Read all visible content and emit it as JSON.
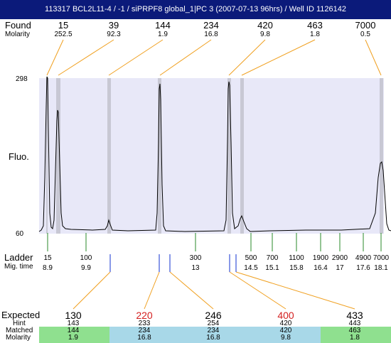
{
  "title": "113317  BCL2L11-4 / -1 / siPRPF8 global_1|PC 3 (2007-07-13 96hrs) / Well ID 1126142",
  "labels": {
    "found": "Found",
    "molarity": "Molarity",
    "fluo": "Fluo.",
    "ymax": "298",
    "ymin": "60",
    "ladder": "Ladder",
    "mig_time": "Mig. time",
    "expected": "Expected",
    "hint": "Hint",
    "matched": "Matched",
    "molarity_bottom": "Molarity"
  },
  "found": [
    {
      "size": "15",
      "molarity": "252.5"
    },
    {
      "size": "39",
      "molarity": "92.3"
    },
    {
      "size": "144",
      "molarity": "1.9"
    },
    {
      "size": "234",
      "molarity": "16.8"
    },
    {
      "size": "420",
      "molarity": "9.8"
    },
    {
      "size": "463",
      "molarity": "1.8"
    },
    {
      "size": "7000",
      "molarity": "0.5"
    }
  ],
  "ladder": [
    {
      "size": "15",
      "time": "8.9"
    },
    {
      "size": "100",
      "time": "9.9"
    },
    {
      "size": "300",
      "time": "13"
    },
    {
      "size": "500",
      "time": "14.5"
    },
    {
      "size": "700",
      "time": "15.1"
    },
    {
      "size": "1100",
      "time": "15.8"
    },
    {
      "size": "1900",
      "time": "16.4"
    },
    {
      "size": "2900",
      "time": "17"
    },
    {
      "size": "4900",
      "time": "17.6"
    },
    {
      "size": "7000",
      "time": "18.1"
    }
  ],
  "expected": [
    {
      "expected": "130",
      "hint": "143",
      "matched": "144",
      "molarity": "1.9",
      "red": false
    },
    {
      "expected": "220",
      "hint": "233",
      "matched": "234",
      "molarity": "16.8",
      "red": true
    },
    {
      "expected": "246",
      "hint": "254",
      "matched": "234",
      "molarity": "16.8",
      "red": false
    },
    {
      "expected": "400",
      "hint": "420",
      "matched": "420",
      "molarity": "9.8",
      "red": true
    },
    {
      "expected": "433",
      "hint": "443",
      "matched": "463",
      "molarity": "1.8",
      "red": false
    }
  ],
  "colors": {
    "title_bg": "#0b1a7a",
    "plot_bg": "#e8e8f8",
    "peak_band": "#c8c8d4",
    "orange_line": "#f0a020",
    "ladder_tick": "#2a8a2a",
    "blue_tick": "#1030d0",
    "green_cell": "#8fe08f",
    "blue_cell": "#a8d8e8",
    "red_text": "#d42020"
  }
}
